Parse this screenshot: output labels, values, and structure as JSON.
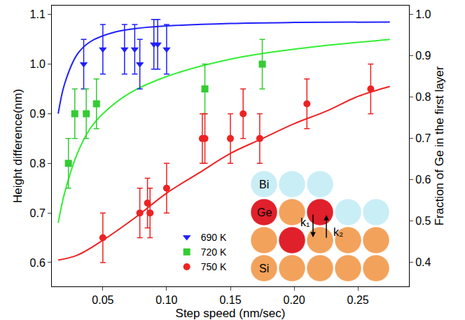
{
  "chart_data": {
    "type": "scatter",
    "x_label": "Step speed (nm/sec)",
    "y_label": "Height difference(nm)",
    "y2_label": "Fraction of Ge in the first layer",
    "xlim": [
      0.01,
      0.29
    ],
    "xticks": [
      0.05,
      {
        "value": 0.1,
        "label": "0.10"
      },
      0.15,
      {
        "value": 0.2,
        "label": "0.20"
      },
      0.25
    ],
    "ylim": [
      0.552,
      1.118
    ],
    "yticks": [
      0.6,
      0.7,
      0.8,
      0.9,
      {
        "value": 1.0,
        "label": "1.0"
      },
      1.1
    ],
    "y2lim": [
      0.342,
      1.021
    ],
    "y2ticks": [
      0.4,
      0.5,
      0.6,
      0.7,
      0.8,
      0.9,
      {
        "value": 1.0,
        "label": "1.0"
      }
    ],
    "grid": false,
    "legend": "lower center",
    "annotations": [
      "Bi",
      "Ge",
      "Si",
      "k₁",
      "k₂"
    ],
    "series": [
      {
        "type": "line",
        "line_style": "solid",
        "color": "#1f1fff",
        "x": [
          0.015,
          0.02,
          0.03,
          0.04,
          0.06,
          0.08,
          0.1,
          0.15,
          0.2,
          0.275
        ],
        "values": [
          0.9,
          0.96,
          1.02,
          1.045,
          1.065,
          1.073,
          1.077,
          1.082,
          1.084,
          1.085
        ]
      },
      {
        "type": "line",
        "line_style": "solid",
        "color": "#33ee33",
        "x": [
          0.015,
          0.02,
          0.03,
          0.04,
          0.05,
          0.07,
          0.1,
          0.15,
          0.2,
          0.275
        ],
        "values": [
          0.68,
          0.74,
          0.82,
          0.87,
          0.9,
          0.94,
          0.975,
          1.01,
          1.03,
          1.05
        ]
      },
      {
        "type": "line",
        "line_style": "solid",
        "color": "#ee2222",
        "x": [
          0.015,
          0.03,
          0.05,
          0.075,
          0.1,
          0.125,
          0.15,
          0.175,
          0.2,
          0.225,
          0.25,
          0.275
        ],
        "values": [
          0.605,
          0.615,
          0.645,
          0.69,
          0.74,
          0.78,
          0.82,
          0.85,
          0.88,
          0.905,
          0.935,
          0.955
        ]
      },
      {
        "name": "690 K",
        "type": "scatter",
        "marker": "triangle-down",
        "color": "#1f1fff",
        "x": [
          0.035,
          0.05,
          0.067,
          0.075,
          0.079,
          0.09,
          0.093,
          0.1
        ],
        "values": [
          1.0,
          1.03,
          1.03,
          1.03,
          1.0,
          1.04,
          1.04,
          1.03
        ],
        "error": [
          0.05,
          0.05,
          0.05,
          0.05,
          0.05,
          0.05,
          0.05,
          0.05
        ]
      },
      {
        "name": "720 K",
        "type": "scatter",
        "marker": "square",
        "color": "#33cc33",
        "x": [
          0.023,
          0.028,
          0.037,
          0.045,
          0.13,
          0.175
        ],
        "values": [
          0.8,
          0.9,
          0.9,
          0.92,
          0.95,
          1.0
        ],
        "error": [
          0.05,
          0.05,
          0.05,
          0.05,
          0.05,
          0.05
        ]
      },
      {
        "name": "750 K",
        "type": "scatter",
        "marker": "circle",
        "color": "#ee2222",
        "x": [
          0.05,
          0.079,
          0.085,
          0.087,
          0.1,
          0.128,
          0.13,
          0.15,
          0.16,
          0.173,
          0.21,
          0.26
        ],
        "values": [
          0.65,
          0.7,
          0.72,
          0.7,
          0.75,
          0.85,
          0.85,
          0.85,
          0.9,
          0.85,
          0.92,
          0.95
        ],
        "error": [
          0.05,
          0.05,
          0.05,
          0.05,
          0.05,
          0.05,
          0.05,
          0.05,
          0.05,
          0.05,
          0.05,
          0.05
        ]
      }
    ]
  }
}
